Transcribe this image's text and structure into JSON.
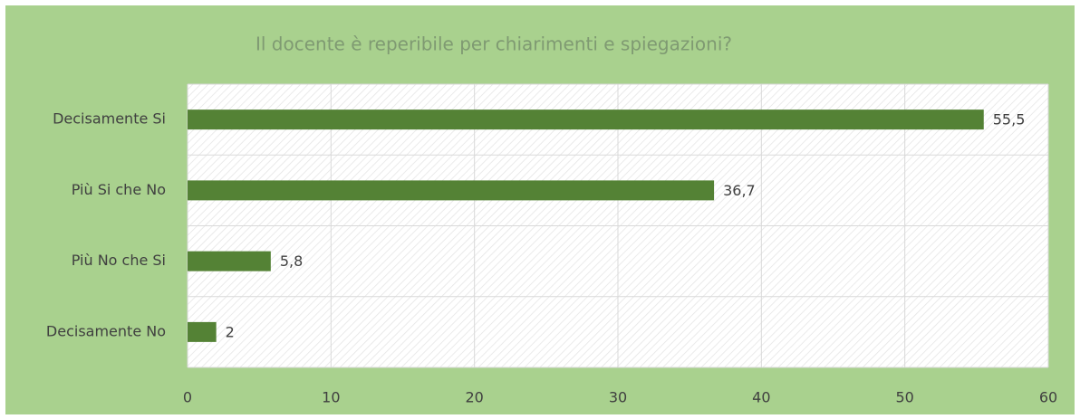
{
  "chart_data": {
    "type": "bar",
    "orientation": "horizontal",
    "title": "Il docente è reperibile per chiarimenti e spiegazioni?",
    "categories": [
      "Decisamente Si",
      "Più Si che No",
      "Più No che Si",
      "Decisamente No"
    ],
    "values": [
      55.5,
      36.7,
      5.8,
      2
    ],
    "value_labels": [
      "55,5",
      "36,7",
      "5,8",
      "2"
    ],
    "color": "#548235",
    "xlim": [
      0,
      60
    ],
    "xticks": [
      0,
      10,
      20,
      30,
      40,
      50,
      60
    ],
    "grid": true
  }
}
